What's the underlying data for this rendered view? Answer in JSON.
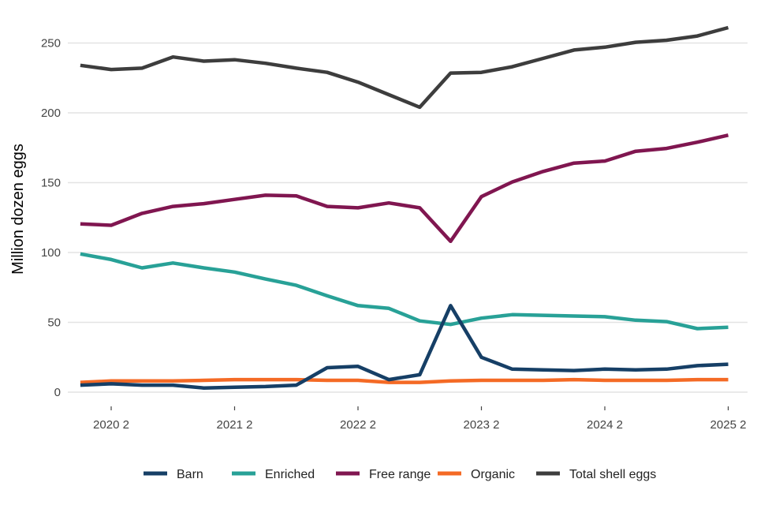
{
  "chart_data": {
    "type": "line",
    "ylabel": "Million dozen eggs",
    "ylim": [
      0,
      265
    ],
    "yticks": [
      0,
      50,
      100,
      150,
      200,
      250
    ],
    "xtick_labels": [
      "2020 2",
      "2021 2",
      "2022 2",
      "2023 2",
      "2024 2",
      "2025 2"
    ],
    "x": [
      "2020 1",
      "2020 2",
      "2020 3",
      "2020 4",
      "2021 1",
      "2021 2",
      "2021 3",
      "2021 4",
      "2022 1",
      "2022 2",
      "2022 3",
      "2022 4",
      "2023 1",
      "2023 2",
      "2023 3",
      "2023 4",
      "2024 1",
      "2024 2",
      "2024 3",
      "2024 4",
      "2025 1",
      "2025 2"
    ],
    "grid": true,
    "legend_position": "bottom",
    "series": [
      {
        "name": "Barn",
        "color": "#163f66",
        "values": [
          5,
          6,
          5,
          5,
          3,
          3.5,
          4,
          5,
          17.5,
          18.5,
          9,
          12.5,
          62,
          25,
          16.5,
          16,
          15.5,
          16.5,
          16,
          16.5,
          19,
          20
        ]
      },
      {
        "name": "Enriched",
        "color": "#28a197",
        "values": [
          99,
          95,
          89,
          92.5,
          89,
          86,
          81,
          76.5,
          69,
          62,
          60,
          51,
          48.5,
          53,
          55.5,
          55,
          54.5,
          54,
          51.5,
          50.5,
          45.5,
          46.5
        ]
      },
      {
        "name": "Free range",
        "color": "#801650",
        "values": [
          120.5,
          119.5,
          128,
          133,
          135,
          138,
          141,
          140.5,
          133,
          132,
          135.5,
          132,
          108,
          140,
          150.5,
          158,
          164,
          165.5,
          172.5,
          174.5,
          179,
          184
        ]
      },
      {
        "name": "Organic",
        "color": "#f46a25",
        "values": [
          7,
          8,
          8,
          8,
          8.5,
          9,
          9,
          9,
          8.5,
          8.5,
          7,
          7,
          8,
          8.5,
          8.5,
          8.5,
          9,
          8.5,
          8.5,
          8.5,
          9,
          9
        ]
      },
      {
        "name": "Total shell eggs",
        "color": "#3d3d3d",
        "values": [
          234,
          231,
          232,
          240,
          237,
          238,
          235.5,
          232,
          229,
          222,
          213,
          204,
          228.5,
          229,
          233,
          239,
          245,
          247,
          250.5,
          252,
          255,
          261
        ]
      }
    ]
  }
}
